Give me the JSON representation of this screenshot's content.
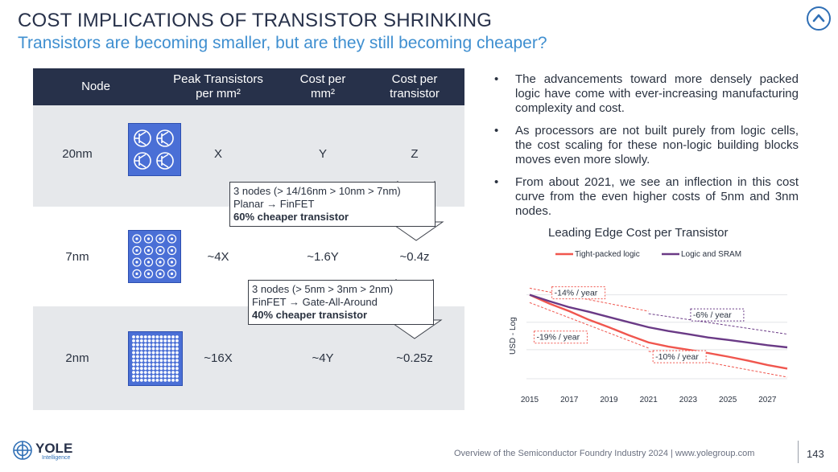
{
  "header": {
    "title": "COST IMPLICATIONS OF TRANSISTOR SHRINKING",
    "subtitle": "Transistors are becoming smaller, but are they still becoming cheaper?"
  },
  "table": {
    "headers": {
      "node": "Node",
      "peak_line1": "Peak Transistors",
      "peak_line2": "per mm²",
      "cost_mm_line1": "Cost per",
      "cost_mm_line2": "mm²",
      "cost_tr_line1": "Cost per",
      "cost_tr_line2": "transistor"
    },
    "rows": [
      {
        "node": "20nm",
        "peak": "X",
        "cost_mm": "Y",
        "cost_tr": "Z"
      },
      {
        "node": "7nm",
        "peak": "~4X",
        "cost_mm": "~1.6Y",
        "cost_tr": "~0.4z"
      },
      {
        "node": "2nm",
        "peak": "~16X",
        "cost_mm": "~4Y",
        "cost_tr": "~0.25z"
      }
    ],
    "callouts": [
      {
        "line1": "3 nodes (> 14/16nm > 10nm > 7nm)",
        "line2": "Planar → FinFET",
        "line3": "60% cheaper transistor"
      },
      {
        "line1": "3 nodes (> 5nm > 3nm > 2nm)",
        "line2": "FinFET → Gate-All-Around",
        "line3": "40% cheaper transistor"
      }
    ]
  },
  "bullets": [
    "The advancements toward more densely packed logic have come with ever-increasing manufacturing complexity and cost.",
    "As processors are not built purely from logic cells, the cost scaling for these non-logic building blocks moves even more slowly.",
    "From about 2021, we see an inflection in this cost curve from the even higher costs of 5nm and 3nm nodes."
  ],
  "bullet_symbol": "•",
  "chart_data": {
    "type": "line",
    "title": "Leading Edge Cost per Transistor",
    "ylabel": "USD - Log",
    "xlabel": "",
    "log_scale": true,
    "x": [
      2015,
      2016,
      2017,
      2018,
      2019,
      2020,
      2021,
      2022,
      2023,
      2024,
      2025,
      2026,
      2027,
      2028
    ],
    "x_tick_labels": [
      "2015",
      "2017",
      "2019",
      "2021",
      "2023",
      "2025",
      "2027"
    ],
    "series": [
      {
        "name": "Tight-packed logic",
        "color": "#f0564e",
        "values": [
          100,
          80,
          66,
          53,
          44,
          36,
          30,
          27,
          25,
          23,
          21,
          19,
          17,
          15.5
        ]
      },
      {
        "name": "Logic and SRAM",
        "color": "#6a3a86",
        "values": [
          100,
          85,
          73,
          65,
          57,
          50,
          44,
          40,
          37,
          34,
          32,
          30,
          28,
          26.5
        ]
      }
    ],
    "annotations": [
      "-14% / year",
      "-6% / year",
      "-19% / year",
      "-10% / year"
    ],
    "grid": true,
    "legend_position": "top"
  },
  "footer": {
    "logo_text": "YOLE",
    "logo_sub": "Intelligence",
    "text": "Overview of the Semiconductor Foundry Industry 2024 | www.yolegroup.com",
    "page": "143"
  }
}
